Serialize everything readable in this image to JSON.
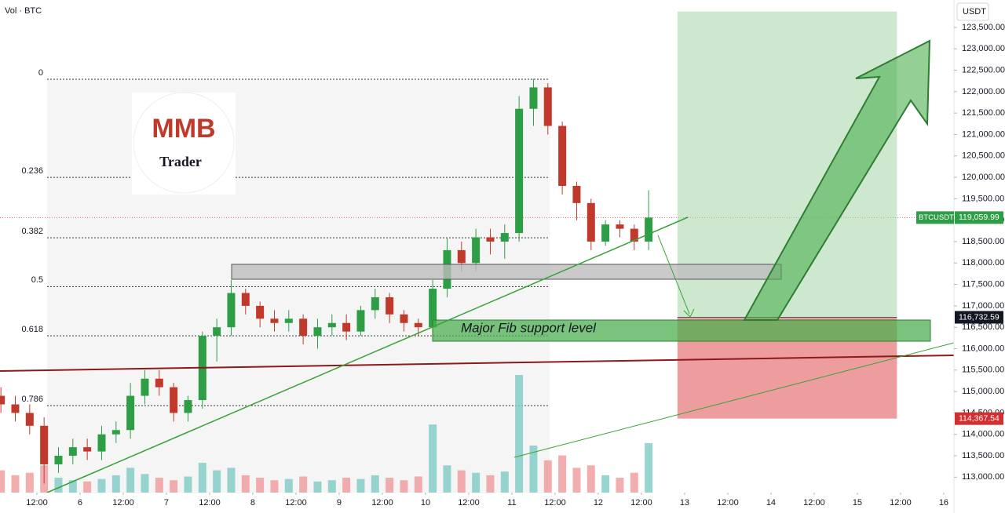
{
  "chart_data": {
    "type": "candlestick",
    "volume_label": "Vol · BTC",
    "currency": "USDT",
    "symbol": "BTCUSDT",
    "xlim": [
      -10.25,
      254.85
    ],
    "ylim": [
      112640,
      124140
    ],
    "xticks": [
      {
        "value": 0,
        "label": "12:00"
      },
      {
        "value": 12,
        "label": "6"
      },
      {
        "value": 24,
        "label": "12:00"
      },
      {
        "value": 36,
        "label": "7"
      },
      {
        "value": 48,
        "label": "12:00"
      },
      {
        "value": 60,
        "label": "8"
      },
      {
        "value": 72,
        "label": "12:00"
      },
      {
        "value": 84,
        "label": "9"
      },
      {
        "value": 96,
        "label": "12:00"
      },
      {
        "value": 108,
        "label": "10"
      },
      {
        "value": 120,
        "label": "12:00"
      },
      {
        "value": 132,
        "label": "11"
      },
      {
        "value": 144,
        "label": "12:00"
      },
      {
        "value": 156,
        "label": "12"
      },
      {
        "value": 168,
        "label": "12:00"
      },
      {
        "value": 180,
        "label": "13"
      },
      {
        "value": 192,
        "label": "12:00"
      },
      {
        "value": 204,
        "label": "14"
      },
      {
        "value": 216,
        "label": "12:00"
      },
      {
        "value": 228,
        "label": "15"
      },
      {
        "value": 240,
        "label": "12:00"
      },
      {
        "value": 252,
        "label": "16"
      }
    ],
    "yticks": [
      {
        "value": 113000,
        "label": "113,000.00"
      },
      {
        "value": 113500,
        "label": "113,500.00"
      },
      {
        "value": 114000,
        "label": "114,000.00"
      },
      {
        "value": 114500,
        "label": "114,500.00"
      },
      {
        "value": 115000,
        "label": "115,000.00"
      },
      {
        "value": 115500,
        "label": "115,500.00"
      },
      {
        "value": 116000,
        "label": "116,000.00"
      },
      {
        "value": 116500,
        "label": "116,500.00"
      },
      {
        "value": 117000,
        "label": "117,000.00"
      },
      {
        "value": 117500,
        "label": "117,500.00"
      },
      {
        "value": 118000,
        "label": "118,000.00"
      },
      {
        "value": 118500,
        "label": "118,500.00"
      },
      {
        "value": 119000,
        "label": "119,000.00"
      },
      {
        "value": 119500,
        "label": "119,500.00"
      },
      {
        "value": 120000,
        "label": "120,000.00"
      },
      {
        "value": 120500,
        "label": "120,500.00"
      },
      {
        "value": 121000,
        "label": "121,000.00"
      },
      {
        "value": 121500,
        "label": "121,500.00"
      },
      {
        "value": 122000,
        "label": "122,000.00"
      },
      {
        "value": 122500,
        "label": "122,500.00"
      },
      {
        "value": 123000,
        "label": "123,000.00"
      },
      {
        "value": 123500,
        "label": "123,500.00"
      }
    ],
    "up_color": "#2e9e46",
    "down_color": "#c0392b",
    "x": [
      -10,
      -6,
      -2,
      2,
      6,
      10,
      14,
      18,
      22,
      26,
      30,
      34,
      38,
      42,
      46,
      50,
      54,
      58,
      62,
      66,
      70,
      74,
      78,
      82,
      86,
      90,
      94,
      98,
      102,
      106,
      110,
      114,
      118,
      122,
      126,
      130,
      134,
      138,
      142,
      146,
      150,
      154,
      158,
      162,
      166,
      170
    ],
    "open": [
      114900,
      114700,
      114500,
      114200,
      113300,
      113500,
      113700,
      113600,
      114000,
      114100,
      114900,
      115300,
      115100,
      114500,
      114800,
      116300,
      116500,
      117300,
      117000,
      116700,
      116600,
      116700,
      116300,
      116500,
      116600,
      116400,
      116900,
      117200,
      116800,
      116600,
      116500,
      117400,
      118300,
      118000,
      118600,
      118500,
      118700,
      121600,
      122100,
      121200,
      119800,
      119400,
      118500,
      118900,
      118800,
      118500
    ],
    "high": [
      115100,
      114900,
      114700,
      114400,
      113700,
      113900,
      113900,
      114200,
      114300,
      115200,
      115500,
      115500,
      115200,
      114900,
      116400,
      116700,
      117600,
      117400,
      117100,
      116900,
      116900,
      116800,
      116700,
      116800,
      116800,
      117000,
      117400,
      117300,
      116900,
      116700,
      117600,
      118600,
      118500,
      118800,
      118800,
      118900,
      121900,
      122300,
      122200,
      121300,
      119900,
      119500,
      119000,
      119000,
      118900,
      119700
    ],
    "low": [
      114500,
      114300,
      114000,
      112850,
      113100,
      113300,
      113400,
      113400,
      113800,
      113900,
      114700,
      114900,
      114300,
      114300,
      114600,
      115700,
      116300,
      116800,
      116500,
      116400,
      116400,
      116100,
      116000,
      116300,
      116200,
      116300,
      116700,
      116600,
      116400,
      116300,
      116300,
      117200,
      117800,
      117800,
      118200,
      118100,
      118500,
      121200,
      121000,
      119600,
      119000,
      118300,
      118400,
      118600,
      118300,
      118300
    ],
    "close": [
      114700,
      114500,
      114200,
      113300,
      113500,
      113700,
      113600,
      114000,
      114100,
      114900,
      115300,
      115100,
      114500,
      114800,
      116300,
      116500,
      117300,
      117000,
      116700,
      116600,
      116700,
      116300,
      116500,
      116600,
      116400,
      116900,
      117200,
      116800,
      116600,
      116500,
      117400,
      118300,
      118000,
      118600,
      118500,
      118700,
      121600,
      122100,
      121200,
      119800,
      119400,
      118500,
      118900,
      118800,
      118500,
      119060
    ],
    "volume": [
      18,
      14,
      16,
      22,
      12,
      10,
      9,
      11,
      14,
      20,
      15,
      12,
      10,
      13,
      24,
      18,
      20,
      14,
      12,
      10,
      11,
      13,
      9,
      10,
      12,
      11,
      14,
      12,
      10,
      13,
      55,
      22,
      18,
      16,
      14,
      17,
      95,
      38,
      26,
      30,
      20,
      22,
      14,
      12,
      16,
      40
    ],
    "fib": {
      "levels": [
        0,
        0.236,
        0.382,
        0.5,
        0.618,
        0.786
      ],
      "prices": [
        122290,
        120000,
        118590,
        117450,
        116300,
        114670
      ]
    },
    "price_tags": [
      {
        "value": 119059.99,
        "label": "119,059.99"
      },
      {
        "value": 116732.59,
        "label": "116,732.59"
      },
      {
        "value": 114367.54,
        "label": "114,367.54"
      }
    ],
    "position": {
      "target": 123870,
      "entry": 116732.59,
      "stop": 114367.54,
      "start": 178,
      "end": 239
    },
    "annotation": "Major Fib support level",
    "logo": {
      "mark": "MMB",
      "name": "Trader"
    }
  }
}
